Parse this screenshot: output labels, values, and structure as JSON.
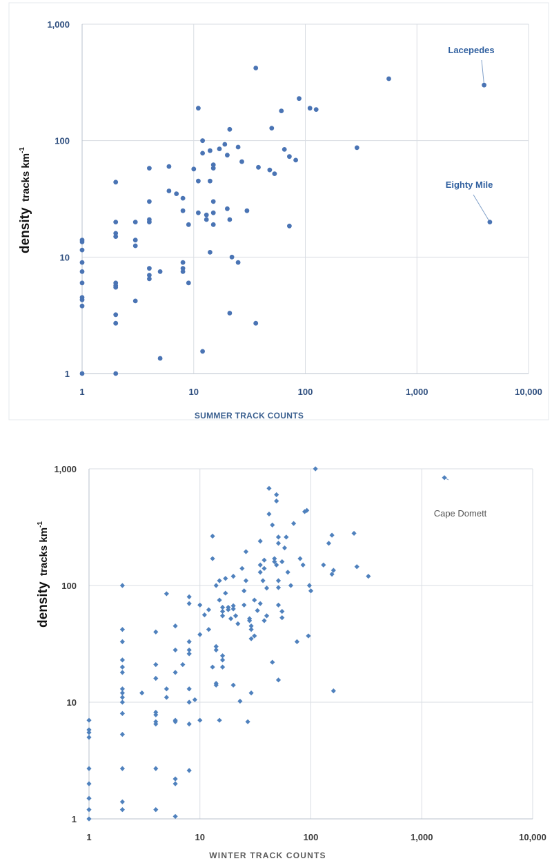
{
  "chart_data": [
    {
      "type": "scatter",
      "scale": "log-log",
      "marker": "circle",
      "color": "#4a74b4",
      "xlabel": "SUMMER TRACK COUNTS",
      "ylabel": {
        "word": "density",
        "rest": "tracks km",
        "sup": "-1"
      },
      "xlim": [
        1,
        10000
      ],
      "ylim": [
        1,
        1000
      ],
      "x_ticks": [
        "1",
        "10",
        "100",
        "1,000",
        "10,000"
      ],
      "y_ticks": [
        "1",
        "10",
        "100",
        "1,000"
      ],
      "grid": true,
      "annotations": [
        {
          "text": "Lacepedes",
          "x": 4000,
          "y": 300
        },
        {
          "text": "Eighty Mile",
          "x": 4500,
          "y": 20
        }
      ],
      "points": [
        [
          1,
          14
        ],
        [
          1,
          13.5
        ],
        [
          1,
          11.5
        ],
        [
          1,
          9
        ],
        [
          1,
          7.5
        ],
        [
          1,
          6
        ],
        [
          1,
          4.5
        ],
        [
          1,
          4.3
        ],
        [
          1,
          3.8
        ],
        [
          1,
          1
        ],
        [
          2,
          44
        ],
        [
          2,
          20
        ],
        [
          2,
          16
        ],
        [
          2,
          15
        ],
        [
          2,
          6
        ],
        [
          2,
          5.7
        ],
        [
          2,
          5.5
        ],
        [
          2,
          3.2
        ],
        [
          2,
          2.7
        ],
        [
          2,
          1
        ],
        [
          3,
          20
        ],
        [
          3,
          14
        ],
        [
          3,
          12.5
        ],
        [
          3,
          4.2
        ],
        [
          4,
          58
        ],
        [
          4,
          30
        ],
        [
          4,
          21
        ],
        [
          4,
          20
        ],
        [
          4,
          8
        ],
        [
          4,
          7
        ],
        [
          4,
          6.5
        ],
        [
          5,
          7.5
        ],
        [
          5,
          1.35
        ],
        [
          6,
          60
        ],
        [
          6,
          37
        ],
        [
          7,
          35
        ],
        [
          8,
          32
        ],
        [
          8,
          25
        ],
        [
          8,
          9
        ],
        [
          8,
          8
        ],
        [
          8,
          7.5
        ],
        [
          9,
          19
        ],
        [
          9,
          6
        ],
        [
          10,
          57
        ],
        [
          11,
          190
        ],
        [
          11,
          45
        ],
        [
          11,
          24
        ],
        [
          12,
          100
        ],
        [
          12,
          78
        ],
        [
          12,
          1.55
        ],
        [
          13,
          23
        ],
        [
          13,
          21
        ],
        [
          14,
          82
        ],
        [
          14,
          45
        ],
        [
          14,
          11
        ],
        [
          15,
          62
        ],
        [
          15,
          58
        ],
        [
          15,
          30
        ],
        [
          15,
          24
        ],
        [
          15,
          19
        ],
        [
          17,
          85
        ],
        [
          19,
          93
        ],
        [
          20,
          75
        ],
        [
          20,
          26
        ],
        [
          21,
          125
        ],
        [
          21,
          21
        ],
        [
          21,
          3.3
        ],
        [
          22,
          10
        ],
        [
          25,
          88
        ],
        [
          25,
          9
        ],
        [
          27,
          66
        ],
        [
          30,
          25
        ],
        [
          36,
          420
        ],
        [
          36,
          2.7
        ],
        [
          38,
          59
        ],
        [
          48,
          56
        ],
        [
          50,
          128
        ],
        [
          53,
          52
        ],
        [
          61,
          180
        ],
        [
          65,
          84
        ],
        [
          72,
          73
        ],
        [
          72,
          18.5
        ],
        [
          82,
          68
        ],
        [
          88,
          230
        ],
        [
          110,
          190
        ],
        [
          125,
          185
        ],
        [
          290,
          87
        ],
        [
          560,
          340
        ],
        [
          4000,
          300
        ],
        [
          4500,
          20
        ]
      ]
    },
    {
      "type": "scatter",
      "scale": "log-log",
      "marker": "diamond",
      "color": "#4f81bd",
      "xlabel": "WINTER TRACK COUNTS",
      "ylabel": {
        "word": "density",
        "rest": "tracks km",
        "sup": "-1"
      },
      "xlim": [
        1,
        10000
      ],
      "ylim": [
        1,
        1000
      ],
      "x_ticks": [
        "1",
        "10",
        "100",
        "1,000",
        "10,000"
      ],
      "y_ticks": [
        "1",
        "10",
        "100",
        "1,000"
      ],
      "grid": true,
      "annotations": [
        {
          "text": "Cape Domett",
          "x": 1600,
          "y": 840
        }
      ],
      "points": [
        [
          1,
          7
        ],
        [
          1,
          5.8
        ],
        [
          1,
          5.5
        ],
        [
          1,
          5
        ],
        [
          1,
          2.7
        ],
        [
          1,
          2
        ],
        [
          1,
          1.5
        ],
        [
          1,
          1.2
        ],
        [
          1,
          1
        ],
        [
          2,
          100
        ],
        [
          2,
          42
        ],
        [
          2,
          33
        ],
        [
          2,
          23
        ],
        [
          2,
          20
        ],
        [
          2,
          18
        ],
        [
          2,
          13
        ],
        [
          2,
          12
        ],
        [
          2,
          11
        ],
        [
          2,
          10
        ],
        [
          2,
          8
        ],
        [
          2,
          5.3
        ],
        [
          2,
          2.7
        ],
        [
          2,
          1.4
        ],
        [
          2,
          1.2
        ],
        [
          3,
          12
        ],
        [
          4,
          40
        ],
        [
          4,
          21
        ],
        [
          4,
          16
        ],
        [
          4,
          8.2
        ],
        [
          4,
          7.8
        ],
        [
          4,
          6.8
        ],
        [
          4,
          6.5
        ],
        [
          4,
          2.7
        ],
        [
          4,
          1.2
        ],
        [
          5,
          85
        ],
        [
          5,
          13
        ],
        [
          5,
          11
        ],
        [
          6,
          45
        ],
        [
          6,
          28
        ],
        [
          6,
          18
        ],
        [
          6,
          7
        ],
        [
          6,
          6.8
        ],
        [
          6,
          2.2
        ],
        [
          6,
          2
        ],
        [
          6,
          1.05
        ],
        [
          7,
          21
        ],
        [
          8,
          80
        ],
        [
          8,
          70
        ],
        [
          8,
          33
        ],
        [
          8,
          28
        ],
        [
          8,
          26
        ],
        [
          8,
          13
        ],
        [
          8,
          10
        ],
        [
          8,
          6.5
        ],
        [
          8,
          2.6
        ],
        [
          9,
          10.5
        ],
        [
          10,
          68
        ],
        [
          10,
          38
        ],
        [
          10,
          7
        ],
        [
          11,
          56
        ],
        [
          12,
          62
        ],
        [
          12,
          42
        ],
        [
          13,
          265
        ],
        [
          13,
          170
        ],
        [
          13,
          20
        ],
        [
          14,
          100
        ],
        [
          14,
          30
        ],
        [
          14,
          28
        ],
        [
          14,
          14.5
        ],
        [
          14,
          14
        ],
        [
          15,
          110
        ],
        [
          15,
          75
        ],
        [
          15,
          7
        ],
        [
          16,
          65
        ],
        [
          16,
          60
        ],
        [
          16,
          55
        ],
        [
          16,
          25
        ],
        [
          16,
          23
        ],
        [
          16,
          20
        ],
        [
          17,
          115
        ],
        [
          17,
          86
        ],
        [
          18,
          65
        ],
        [
          18,
          62
        ],
        [
          19,
          52
        ],
        [
          20,
          120
        ],
        [
          20,
          67
        ],
        [
          20,
          63
        ],
        [
          20,
          14
        ],
        [
          21,
          55
        ],
        [
          22,
          47
        ],
        [
          23,
          10.2
        ],
        [
          24,
          140
        ],
        [
          25,
          90
        ],
        [
          25,
          68
        ],
        [
          26,
          195
        ],
        [
          26,
          110
        ],
        [
          27,
          6.8
        ],
        [
          28,
          52
        ],
        [
          28,
          50
        ],
        [
          29,
          45
        ],
        [
          29,
          42
        ],
        [
          29,
          35
        ],
        [
          29,
          12
        ],
        [
          31,
          75
        ],
        [
          31,
          37
        ],
        [
          33,
          61
        ],
        [
          35,
          240
        ],
        [
          35,
          150
        ],
        [
          35,
          130
        ],
        [
          35,
          70
        ],
        [
          37,
          110
        ],
        [
          38,
          165
        ],
        [
          38,
          140
        ],
        [
          38,
          50
        ],
        [
          40,
          95
        ],
        [
          40,
          55
        ],
        [
          42,
          680
        ],
        [
          42,
          410
        ],
        [
          45,
          330
        ],
        [
          45,
          22
        ],
        [
          47,
          170
        ],
        [
          47,
          160
        ],
        [
          49,
          600
        ],
        [
          49,
          530
        ],
        [
          49,
          150
        ],
        [
          51,
          260
        ],
        [
          51,
          230
        ],
        [
          51,
          110
        ],
        [
          51,
          96
        ],
        [
          51,
          68
        ],
        [
          51,
          15.5
        ],
        [
          55,
          160
        ],
        [
          55,
          60
        ],
        [
          55,
          53
        ],
        [
          58,
          210
        ],
        [
          60,
          260
        ],
        [
          62,
          130
        ],
        [
          66,
          100
        ],
        [
          70,
          340
        ],
        [
          75,
          33
        ],
        [
          80,
          170
        ],
        [
          85,
          150
        ],
        [
          88,
          430
        ],
        [
          92,
          440
        ],
        [
          95,
          37
        ],
        [
          97,
          100
        ],
        [
          100,
          90
        ],
        [
          110,
          1000
        ],
        [
          130,
          150
        ],
        [
          145,
          230
        ],
        [
          155,
          270
        ],
        [
          155,
          125
        ],
        [
          160,
          135
        ],
        [
          160,
          12.5
        ],
        [
          245,
          280
        ],
        [
          260,
          145
        ],
        [
          330,
          120
        ],
        [
          1600,
          840
        ]
      ]
    }
  ]
}
